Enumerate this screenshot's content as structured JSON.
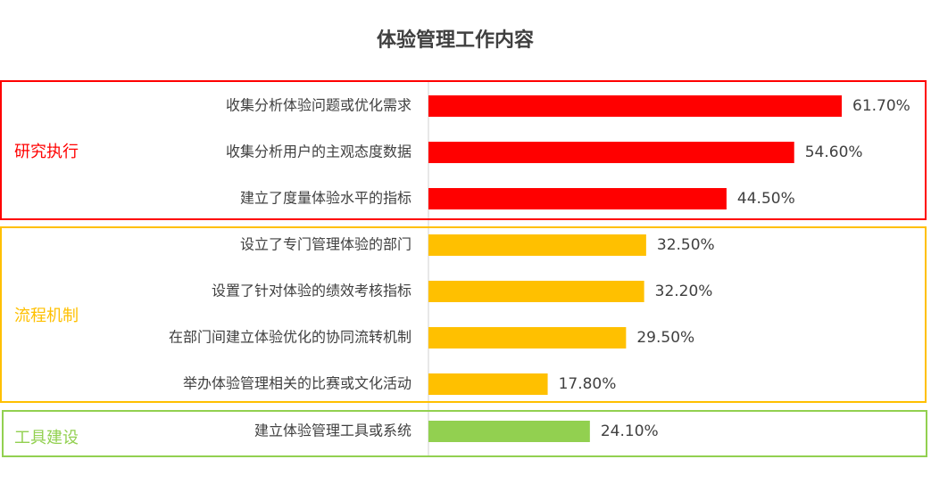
{
  "chart_data": {
    "type": "bar",
    "orientation": "horizontal",
    "title": "体验管理工作内容",
    "xlim": [
      0,
      75
    ],
    "value_format": "percent, 2 decimals",
    "groups": [
      {
        "name": "研究执行",
        "color": "#FF0000",
        "items": [
          {
            "label": "收集分析体验问题或优化需求",
            "value": 61.7,
            "value_label": "61.70%"
          },
          {
            "label": "收集分析用户的主观态度数据",
            "value": 54.6,
            "value_label": "54.60%"
          },
          {
            "label": "建立了度量体验水平的指标",
            "value": 44.5,
            "value_label": "44.50%"
          }
        ]
      },
      {
        "name": "流程机制",
        "color": "#FFC000",
        "items": [
          {
            "label": "设立了专门管理体验的部门",
            "value": 32.5,
            "value_label": "32.50%"
          },
          {
            "label": "设置了针对体验的绩效考核指标",
            "value": 32.2,
            "value_label": "32.20%"
          },
          {
            "label": "在部门间建立体验优化的协同流转机制",
            "value": 29.5,
            "value_label": "29.50%"
          },
          {
            "label": "举办体验管理相关的比赛或文化活动",
            "value": 17.8,
            "value_label": "17.80%"
          }
        ]
      },
      {
        "name": "工具建设",
        "color": "#92D050",
        "items": [
          {
            "label": "建立体验管理工具或系统",
            "value": 24.1,
            "value_label": "24.10%"
          }
        ]
      }
    ]
  }
}
